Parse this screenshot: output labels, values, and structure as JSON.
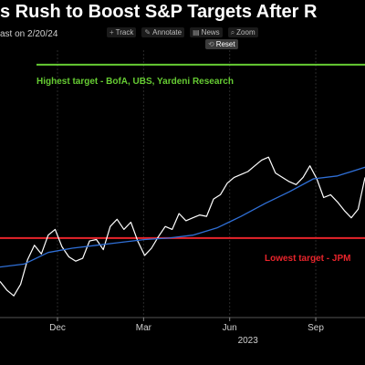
{
  "header": {
    "title": "s Rush to Boost S&P Targets After R",
    "subtitle": "ast on 2/20/24"
  },
  "toolbar": {
    "items": [
      {
        "label": "Track",
        "icon": "plus-icon"
      },
      {
        "label": "Annotate",
        "icon": "pencil-icon"
      },
      {
        "label": "News",
        "icon": "news-icon"
      },
      {
        "label": "Zoom",
        "icon": "zoom-icon"
      }
    ],
    "reset": {
      "label": "Reset",
      "icon": "reset-icon"
    }
  },
  "colors": {
    "background": "#000000",
    "index_line": "#ffffff",
    "moving_average": "#2f6fd6",
    "highest_target": "#66cc33",
    "lowest_target": "#e8242b"
  },
  "chart_data": {
    "type": "line",
    "x_unit": "month",
    "x_ticks": [
      "Dec",
      "Mar",
      "Jun",
      "Sep"
    ],
    "x_tick_values": [
      2022.917,
      2023.167,
      2023.417,
      2023.667
    ],
    "year_label": "2023",
    "year_value": 2023.47,
    "xlim": [
      2022.75,
      2023.81
    ],
    "ylim": [
      3450,
      5300
    ],
    "series": [
      {
        "role": "index",
        "x": [
          2022.75,
          2022.77,
          2022.79,
          2022.81,
          2022.83,
          2022.85,
          2022.87,
          2022.89,
          2022.91,
          2022.93,
          2022.95,
          2022.97,
          2022.99,
          2023.01,
          2023.03,
          2023.05,
          2023.07,
          2023.09,
          2023.11,
          2023.13,
          2023.15,
          2023.17,
          2023.19,
          2023.21,
          2023.23,
          2023.25,
          2023.27,
          2023.29,
          2023.31,
          2023.33,
          2023.35,
          2023.37,
          2023.39,
          2023.41,
          2023.43,
          2023.45,
          2023.47,
          2023.49,
          2023.51,
          2023.53,
          2023.55,
          2023.57,
          2023.59,
          2023.61,
          2023.63,
          2023.65,
          2023.67,
          2023.69,
          2023.71,
          2023.73,
          2023.75,
          2023.77,
          2023.79,
          2023.81
        ],
        "y": [
          3700,
          3640,
          3600,
          3680,
          3850,
          3950,
          3890,
          4020,
          4060,
          3940,
          3870,
          3840,
          3860,
          3980,
          3990,
          3920,
          4080,
          4130,
          4060,
          4110,
          3980,
          3880,
          3930,
          4010,
          4080,
          4060,
          4170,
          4120,
          4140,
          4160,
          4150,
          4270,
          4300,
          4380,
          4420,
          4440,
          4460,
          4500,
          4540,
          4560,
          4450,
          4420,
          4390,
          4370,
          4420,
          4500,
          4410,
          4280,
          4300,
          4250,
          4190,
          4140,
          4200,
          4420
        ]
      },
      {
        "role": "moving_average",
        "x": [
          2022.75,
          2022.82,
          2022.89,
          2022.96,
          2023.03,
          2023.1,
          2023.17,
          2023.24,
          2023.31,
          2023.38,
          2023.45,
          2023.52,
          2023.59,
          2023.66,
          2023.73,
          2023.81
        ],
        "y": [
          3800,
          3820,
          3900,
          3930,
          3950,
          3970,
          3990,
          4000,
          4020,
          4070,
          4150,
          4240,
          4320,
          4410,
          4430,
          4490
        ]
      }
    ],
    "reference_lines": [
      {
        "value": 5200,
        "label": "Highest target - BofA, UBS, Yardeni Research"
      },
      {
        "value": 4000,
        "label": "Lowest target - JPM"
      }
    ]
  }
}
